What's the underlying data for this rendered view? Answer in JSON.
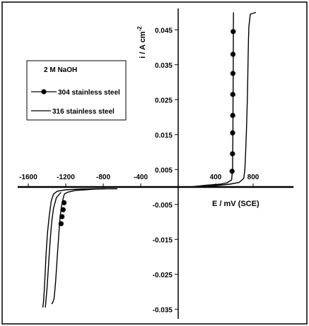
{
  "chart_data": {
    "type": "line",
    "title": "",
    "xlabel": "E / mV (SCE)",
    "ylabel_main": "i / A cm",
    "ylabel_sup": "-2",
    "xlim": [
      -1800,
      1000
    ],
    "ylim": [
      -0.036,
      0.05
    ],
    "x_ticks": [
      {
        "value": -1600,
        "label": "-1600"
      },
      {
        "value": -1200,
        "label": "-1200"
      },
      {
        "value": -800,
        "label": "-800"
      },
      {
        "value": -400,
        "label": "-400"
      },
      {
        "value": 400,
        "label": "400"
      },
      {
        "value": 800,
        "label": "800"
      }
    ],
    "y_ticks": [
      {
        "value": 0.045,
        "label": "0.045"
      },
      {
        "value": 0.035,
        "label": "0.035"
      },
      {
        "value": 0.025,
        "label": "0.025"
      },
      {
        "value": 0.015,
        "label": "0.015"
      },
      {
        "value": 0.005,
        "label": "0.005"
      },
      {
        "value": -0.005,
        "label": "-0.005"
      },
      {
        "value": -0.015,
        "label": "-0.015"
      },
      {
        "value": -0.025,
        "label": "-0.025"
      },
      {
        "value": -0.035,
        "label": "-0.035"
      }
    ],
    "legend": {
      "placement": "left",
      "title": "2 M NaOH",
      "entries": [
        {
          "label": "304 stainless steel",
          "marker": "circle"
        },
        {
          "label": "316 stainless steel",
          "marker": "none"
        }
      ]
    },
    "series": [
      {
        "name": "304 stainless steel",
        "marker": "circle",
        "color": "#000000",
        "branches": [
          {
            "x": [
              130,
              300,
              450,
              520,
              570,
              580,
              582,
              584,
              585,
              586,
              587,
              588,
              589,
              590
            ],
            "y": [
              0.0,
              0.0005,
              0.0008,
              0.0012,
              0.002,
              0.005,
              0.01,
              0.016,
              0.021,
              0.026,
              0.032,
              0.038,
              0.044,
              0.05
            ]
          },
          {
            "x": [
              -780,
              -900,
              -1000,
              -1100,
              -1180,
              -1215,
              -1230,
              -1245,
              -1258,
              -1268,
              -1278,
              -1288,
              -1298,
              -1308,
              -1318,
              -1325,
              -1338,
              -1350
            ],
            "y": [
              -0.0005,
              -0.0006,
              -0.0008,
              -0.001,
              -0.0015,
              -0.002,
              -0.0035,
              -0.0055,
              -0.008,
              -0.011,
              -0.015,
              -0.019,
              -0.023,
              -0.027,
              -0.03,
              -0.032,
              -0.033,
              -0.0335
            ]
          }
        ],
        "marker_points": [
          {
            "x": 575,
            "y": 0.0045
          },
          {
            "x": 580,
            "y": 0.0095
          },
          {
            "x": 581,
            "y": 0.0155
          },
          {
            "x": 582,
            "y": 0.0205
          },
          {
            "x": 583,
            "y": 0.0265
          },
          {
            "x": 584,
            "y": 0.0325
          },
          {
            "x": 585,
            "y": 0.038
          },
          {
            "x": 587,
            "y": 0.0445
          },
          {
            "x": -1218,
            "y": -0.0045
          },
          {
            "x": -1228,
            "y": -0.0065
          },
          {
            "x": -1240,
            "y": -0.0085
          },
          {
            "x": -1250,
            "y": -0.0105
          }
        ]
      },
      {
        "name": "316 stainless steel",
        "marker": "none",
        "color": "#000000",
        "branches": [
          {
            "x": [
              230,
              400,
              550,
              650,
              700,
              712,
              720,
              728,
              733,
              738,
              742,
              746,
              750,
              755,
              770,
              830
            ],
            "y": [
              0.0,
              0.0004,
              0.0008,
              0.0013,
              0.0025,
              0.005,
              0.01,
              0.016,
              0.02,
              0.025,
              0.03,
              0.036,
              0.042,
              0.046,
              0.0495,
              0.05
            ]
          },
          {
            "x": [
              -650,
              -850,
              -1050,
              -1200,
              -1290,
              -1330,
              -1355,
              -1375,
              -1395,
              -1410,
              -1420,
              -1430,
              -1438,
              -1445
            ],
            "y": [
              -0.0005,
              -0.0005,
              -0.0006,
              -0.0008,
              -0.0012,
              -0.002,
              -0.004,
              -0.008,
              -0.013,
              -0.019,
              -0.025,
              -0.03,
              -0.033,
              -0.0345
            ]
          },
          {
            "x": [
              -1250,
              -1300,
              -1330,
              -1350,
              -1365,
              -1378,
              -1390,
              -1400,
              -1410,
              -1418
            ],
            "y": [
              -0.0015,
              -0.003,
              -0.006,
              -0.01,
              -0.015,
              -0.02,
              -0.025,
              -0.029,
              -0.032,
              -0.0345
            ]
          }
        ]
      }
    ]
  }
}
